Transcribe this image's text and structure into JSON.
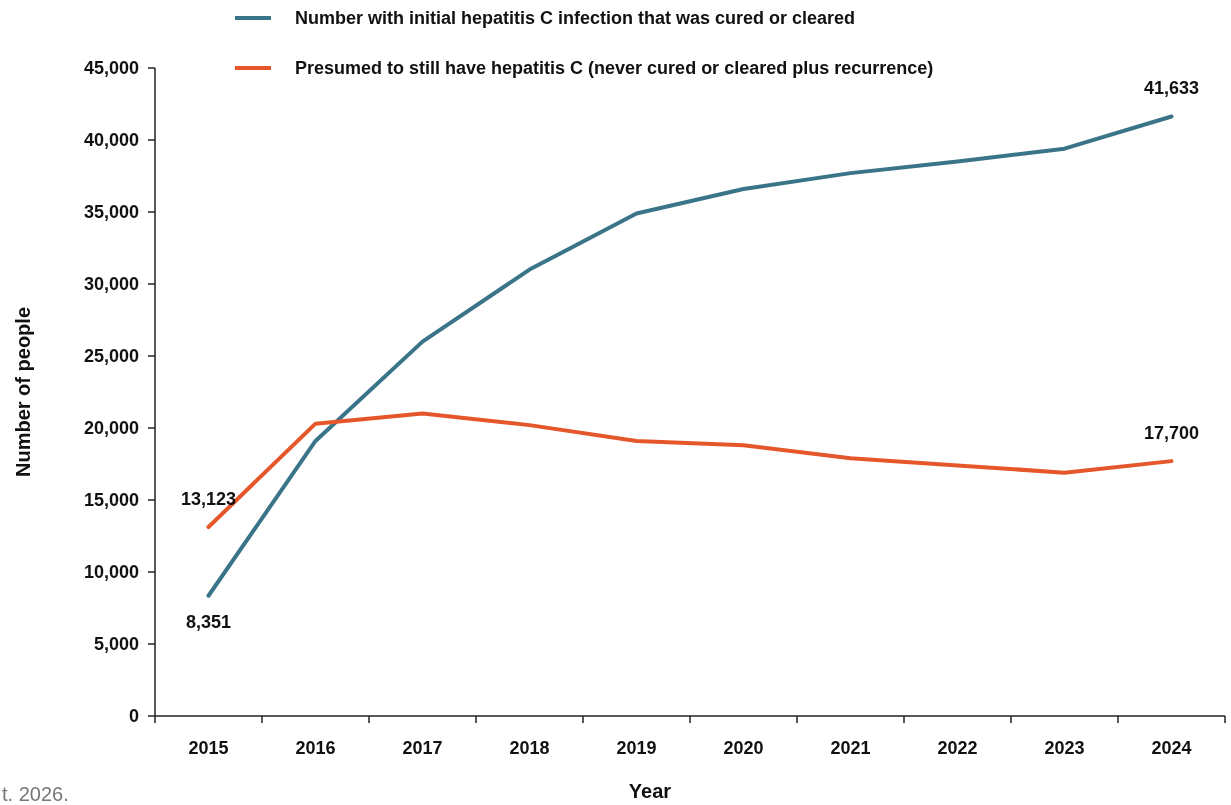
{
  "chart_data": {
    "type": "line",
    "xlabel": "Year",
    "ylabel": "Number of people",
    "categories": [
      "2015",
      "2016",
      "2017",
      "2018",
      "2019",
      "2020",
      "2021",
      "2022",
      "2023",
      "2024"
    ],
    "series": [
      {
        "name": "Number with initial hepatitis C infection that was cured or cleared",
        "color": "#3a7489",
        "values": [
          8351,
          19100,
          26000,
          31000,
          34900,
          36600,
          37700,
          38500,
          39400,
          41633
        ],
        "value_labels": [
          "8,351",
          null,
          null,
          null,
          null,
          null,
          null,
          null,
          null,
          "41,633"
        ]
      },
      {
        "name": "Presumed to still have hepatitis C (never cured or cleared plus recurrence)",
        "color": "#e5572b",
        "values": [
          13123,
          20300,
          21000,
          20200,
          19100,
          18800,
          17900,
          17400,
          16900,
          17700
        ],
        "value_labels": [
          "13,123",
          null,
          null,
          null,
          null,
          null,
          null,
          null,
          null,
          "17,700"
        ]
      }
    ],
    "ylim": [
      0,
      45000
    ],
    "yticks": [
      {
        "value": 0,
        "label": "0"
      },
      {
        "value": 5000,
        "label": "5,000"
      },
      {
        "value": 10000,
        "label": "10,000"
      },
      {
        "value": 15000,
        "label": "15,000"
      },
      {
        "value": 20000,
        "label": "20,000"
      },
      {
        "value": 25000,
        "label": "25,000"
      },
      {
        "value": 30000,
        "label": "30,000"
      },
      {
        "value": 35000,
        "label": "35,000"
      },
      {
        "value": 40000,
        "label": "40,000"
      },
      {
        "value": 45000,
        "label": "45,000"
      }
    ],
    "grid": false,
    "legend": "top",
    "line_style": "solid",
    "marker": "none",
    "annotations": [
      "t. 2026."
    ]
  }
}
